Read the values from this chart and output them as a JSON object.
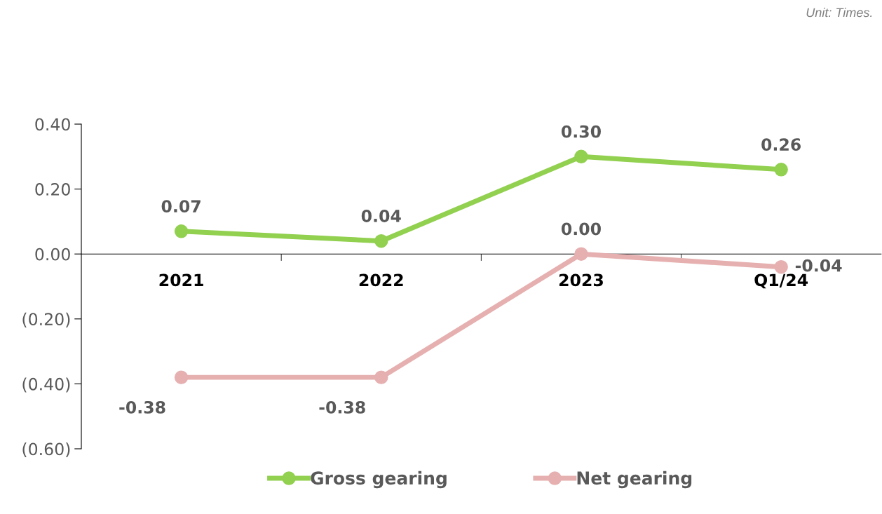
{
  "chart_data": {
    "type": "line",
    "categories": [
      "2021",
      "2022",
      "2023",
      "Q1/24"
    ],
    "series": [
      {
        "name": "Gross gearing",
        "color": "#92d050",
        "values": [
          0.07,
          0.04,
          0.3,
          0.26
        ],
        "value_labels": [
          "0.07",
          "0.04",
          "0.30",
          "0.26"
        ]
      },
      {
        "name": "Net gearing",
        "color": "#e6b0b0",
        "values": [
          -0.38,
          -0.38,
          0.0,
          -0.04
        ],
        "value_labels": [
          "-0.38",
          "-0.38",
          "0.00",
          "-0.04"
        ]
      }
    ],
    "ylim": [
      -0.6,
      0.4
    ],
    "yticks": [
      {
        "value": -0.6,
        "label": "(0.60)"
      },
      {
        "value": -0.4,
        "label": "(0.40)"
      },
      {
        "value": -0.2,
        "label": "(0.20)"
      },
      {
        "value": 0,
        "label": "0.00"
      },
      {
        "value": 0.2,
        "label": "0.20"
      },
      {
        "value": 0.4,
        "label": "0.40"
      }
    ],
    "annotations": [
      "Unit: Times."
    ],
    "legend": "bottom",
    "marker": "circle",
    "line_style": "solid",
    "grid": false
  }
}
